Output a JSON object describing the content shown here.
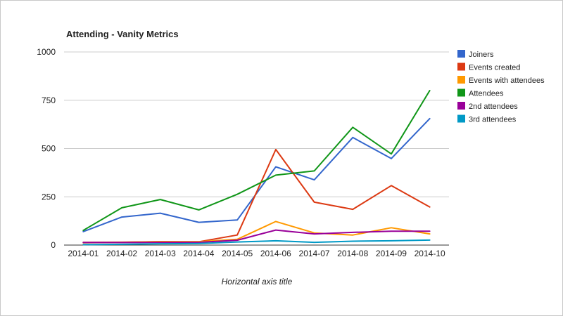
{
  "chart_data": {
    "type": "line",
    "title": "Attending - Vanity Metrics",
    "xlabel": "Horizontal axis title",
    "ylabel": "",
    "ylim": [
      0,
      1000
    ],
    "yticks": [
      0,
      250,
      500,
      750,
      1000
    ],
    "grid": true,
    "legend_position": "right",
    "categories": [
      "2014-01",
      "2014-02",
      "2014-03",
      "2014-04",
      "2014-05",
      "2014-06",
      "2014-07",
      "2014-08",
      "2014-09",
      "2014-10"
    ],
    "series": [
      {
        "name": "Joiners",
        "color": "#3366cc",
        "values": [
          70,
          145,
          165,
          118,
          130,
          405,
          338,
          557,
          448,
          655
        ]
      },
      {
        "name": "Events created",
        "color": "#dc3912",
        "values": [
          14,
          15,
          18,
          17,
          52,
          495,
          222,
          185,
          308,
          197
        ]
      },
      {
        "name": "Events with attendees",
        "color": "#ff9900",
        "values": [
          12,
          14,
          18,
          17,
          30,
          122,
          63,
          52,
          90,
          58
        ]
      },
      {
        "name": "Attendees",
        "color": "#109618",
        "values": [
          76,
          193,
          236,
          182,
          263,
          362,
          384,
          610,
          472,
          800
        ]
      },
      {
        "name": "2nd attendees",
        "color": "#990099",
        "values": [
          13,
          13,
          14,
          14,
          25,
          78,
          58,
          66,
          72,
          72
        ]
      },
      {
        "name": "3rd attendees",
        "color": "#0099c6",
        "values": [
          2,
          4,
          7,
          8,
          16,
          22,
          14,
          20,
          22,
          26
        ]
      }
    ]
  }
}
